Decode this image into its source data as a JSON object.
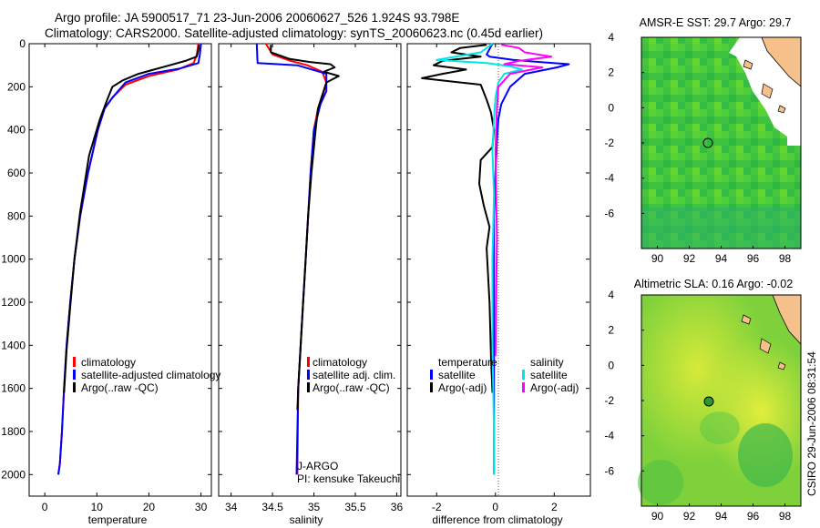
{
  "figure": {
    "title_line1": "Argo profile: JA 5900517_71 23-Jun-2006 20060627_526 1.924S 93.798E",
    "title_line2": "Climatology: CARS2000. Satellite-adjusted climatology: synTS_20060623.nc (0.45d earlier)",
    "stamp": "CSIRO 29-Jun-2006 08:31:54",
    "pi_line1": "J-ARGO",
    "pi_line2": "PI: kensuke Takeuchi"
  },
  "colors": {
    "climatology": "#ff0000",
    "satellite": "#0000ff",
    "argo": "#000000",
    "salinity_satellite": "#00e5e5",
    "salinity_argo": "#ff00ff",
    "ocean_sst": "#33cc33",
    "land": "#f5c08a"
  },
  "chart_data": [
    {
      "type": "line",
      "xlabel": "temperature",
      "ylabel": "",
      "xlim": [
        -3,
        32
      ],
      "ylim": [
        2100,
        0
      ],
      "xticks": [
        0,
        10,
        20,
        30
      ],
      "yticks": [
        0,
        200,
        400,
        600,
        800,
        1000,
        1200,
        1400,
        1600,
        1800,
        2000
      ],
      "legend": [
        "climatology",
        "satellite-adjusted climatology",
        "Argo(..raw -QC)"
      ],
      "series": [
        {
          "name": "climatology",
          "color_key": "climatology",
          "x": [
            29.5,
            29.2,
            28.6,
            25.5,
            20,
            15.5,
            13,
            11.5,
            10.2,
            8.3,
            6.8,
            5.7,
            4.9,
            4.2,
            3.7,
            3.3,
            2.9,
            2.6
          ],
          "y": [
            0,
            50,
            90,
            120,
            150,
            190,
            250,
            300,
            400,
            600,
            800,
            1000,
            1200,
            1400,
            1600,
            1800,
            1950,
            2000
          ]
        },
        {
          "name": "satellite-adjusted climatology",
          "color_key": "satellite",
          "x": [
            30,
            29.8,
            29.5,
            26,
            20,
            15.5,
            13,
            11.5,
            10.2,
            8.3,
            6.8,
            5.7,
            4.9,
            4.2,
            3.7,
            3.3,
            2.9,
            2.6
          ],
          "y": [
            0,
            50,
            90,
            115,
            140,
            180,
            250,
            300,
            400,
            600,
            800,
            1000,
            1200,
            1400,
            1600,
            1800,
            1950,
            2000
          ]
        },
        {
          "name": "Argo(..raw -QC)",
          "color_key": "argo",
          "x": [
            29.6,
            29.5,
            29.2,
            27,
            24,
            21,
            18,
            15,
            13,
            12,
            10.6,
            8.5,
            6.8,
            5.7,
            4.9,
            4.2,
            3.7
          ],
          "y": [
            5,
            30,
            60,
            80,
            100,
            120,
            140,
            170,
            200,
            260,
            350,
            520,
            780,
            1000,
            1220,
            1420,
            1620
          ]
        }
      ]
    },
    {
      "type": "line",
      "xlabel": "salinity",
      "xlim": [
        33.85,
        36.05
      ],
      "ylim": [
        2100,
        0
      ],
      "xticks": [
        34,
        34.5,
        35,
        35.5,
        36
      ],
      "legend": [
        "climatology",
        "satellite adj. clim.",
        "Argo(..raw -QC)"
      ],
      "series": [
        {
          "name": "climatology",
          "color_key": "climatology",
          "x": [
            34.42,
            34.5,
            34.72,
            34.92,
            35.1,
            35.15,
            35.1,
            35.05,
            35.0,
            34.96,
            34.93,
            34.9,
            34.87,
            34.84,
            34.81,
            34.8
          ],
          "y": [
            0,
            50,
            80,
            100,
            130,
            180,
            250,
            300,
            400,
            600,
            800,
            1000,
            1200,
            1400,
            1600,
            2000
          ]
        },
        {
          "name": "satellite adj. clim.",
          "color_key": "satellite",
          "x": [
            34.31,
            34.32,
            34.8,
            35.15,
            35.15,
            35.08,
            35.04,
            35.0,
            34.96,
            34.93,
            34.9,
            34.87,
            34.84,
            34.81,
            34.79
          ],
          "y": [
            0,
            90,
            100,
            140,
            220,
            280,
            340,
            400,
            600,
            800,
            1000,
            1200,
            1400,
            1600,
            2000
          ]
        },
        {
          "name": "Argo(..raw -QC)",
          "color_key": "argo",
          "x": [
            34.48,
            34.48,
            34.7,
            34.95,
            35.2,
            35.25,
            35.12,
            35.3,
            35.15,
            35.1,
            35.05,
            35.02,
            34.97,
            34.93,
            34.9,
            34.87,
            34.84,
            34.81,
            34.8
          ],
          "y": [
            5,
            40,
            70,
            85,
            95,
            110,
            130,
            150,
            180,
            240,
            300,
            400,
            600,
            800,
            1000,
            1200,
            1400,
            1600,
            1700
          ]
        }
      ]
    },
    {
      "type": "line",
      "xlabel": "difference from climatology",
      "xlim": [
        -3,
        3.2
      ],
      "ylim": [
        2100,
        0
      ],
      "xticks": [
        -2,
        0,
        2
      ],
      "legend_groups": [
        {
          "header": "temperature",
          "items": [
            "satellite",
            "Argo(-adj)"
          ]
        },
        {
          "header": "salinity",
          "items": [
            "satellite",
            "Argo(-adj)"
          ]
        }
      ],
      "series": [
        {
          "name": "satellite",
          "group": "temperature",
          "color_key": "satellite",
          "x": [
            -0.1,
            -0.3,
            -0.2,
            0.6,
            1.5,
            2.5,
            2.1,
            1.0,
            0.5,
            0.2,
            0.1,
            0.05,
            0.0,
            -0.05,
            -0.05,
            -0.05,
            -0.05
          ],
          "y": [
            0,
            50,
            60,
            75,
            85,
            95,
            110,
            140,
            200,
            280,
            350,
            450,
            600,
            800,
            1000,
            1500,
            2000
          ]
        },
        {
          "name": "Argo(-adj)",
          "group": "temperature",
          "color_key": "argo",
          "x": [
            -0.3,
            -1.2,
            -1.5,
            -0.5,
            -1.8,
            -2.1,
            -1.0,
            -1.8,
            -2.5,
            -0.5,
            -0.3,
            -0.15,
            -0.05,
            -0.1,
            -0.5,
            -0.55,
            -0.4,
            -0.2,
            -0.3,
            -0.2,
            -0.15,
            -0.1
          ],
          "y": [
            5,
            20,
            40,
            60,
            80,
            100,
            120,
            140,
            160,
            190,
            260,
            320,
            400,
            480,
            540,
            650,
            750,
            850,
            950,
            1200,
            1450,
            1620
          ]
        },
        {
          "name": "satellite",
          "group": "salinity",
          "color_key": "salinity_satellite",
          "x": [
            -0.1,
            -0.5,
            -2.0,
            -0.3,
            0.5,
            0.9,
            0.3,
            0.1,
            0.0,
            -0.05,
            -0.1,
            -0.05,
            -0.1,
            -0.1,
            -0.05,
            -0.05
          ],
          "y": [
            0,
            40,
            75,
            90,
            105,
            120,
            140,
            180,
            250,
            350,
            500,
            700,
            1000,
            1400,
            1800,
            2000
          ]
        },
        {
          "name": "Argo(-adj)",
          "group": "salinity",
          "color_key": "salinity_argo",
          "x": [
            0.2,
            0.8,
            1.0,
            1.9,
            0.8,
            0.3,
            1.6,
            0.5,
            0.1,
            0.05,
            0.0,
            0.05,
            0.0
          ],
          "y": [
            5,
            20,
            40,
            60,
            80,
            95,
            110,
            140,
            200,
            300,
            500,
            900,
            1450
          ]
        }
      ]
    },
    {
      "type": "heatmap",
      "title": "AMSR-E SST: 29.7 Argo: 29.7",
      "xticks": [
        90,
        92,
        94,
        96,
        98
      ],
      "yticks": [
        4,
        2,
        0,
        -2,
        -4,
        -6
      ],
      "xlim": [
        89,
        99
      ],
      "ylim": [
        -8,
        4
      ],
      "marker": {
        "lon": 93.798,
        "lat": -1.924
      }
    },
    {
      "type": "heatmap",
      "title": "Altimetric SLA: 0.16 Argo: -0.02",
      "xticks": [
        90,
        92,
        94,
        96,
        98
      ],
      "yticks": [
        4,
        2,
        0,
        -2,
        -4,
        -6
      ],
      "xlim": [
        89,
        99
      ],
      "ylim": [
        -8,
        4
      ],
      "marker": {
        "lon": 93.798,
        "lat": -1.924
      }
    }
  ]
}
